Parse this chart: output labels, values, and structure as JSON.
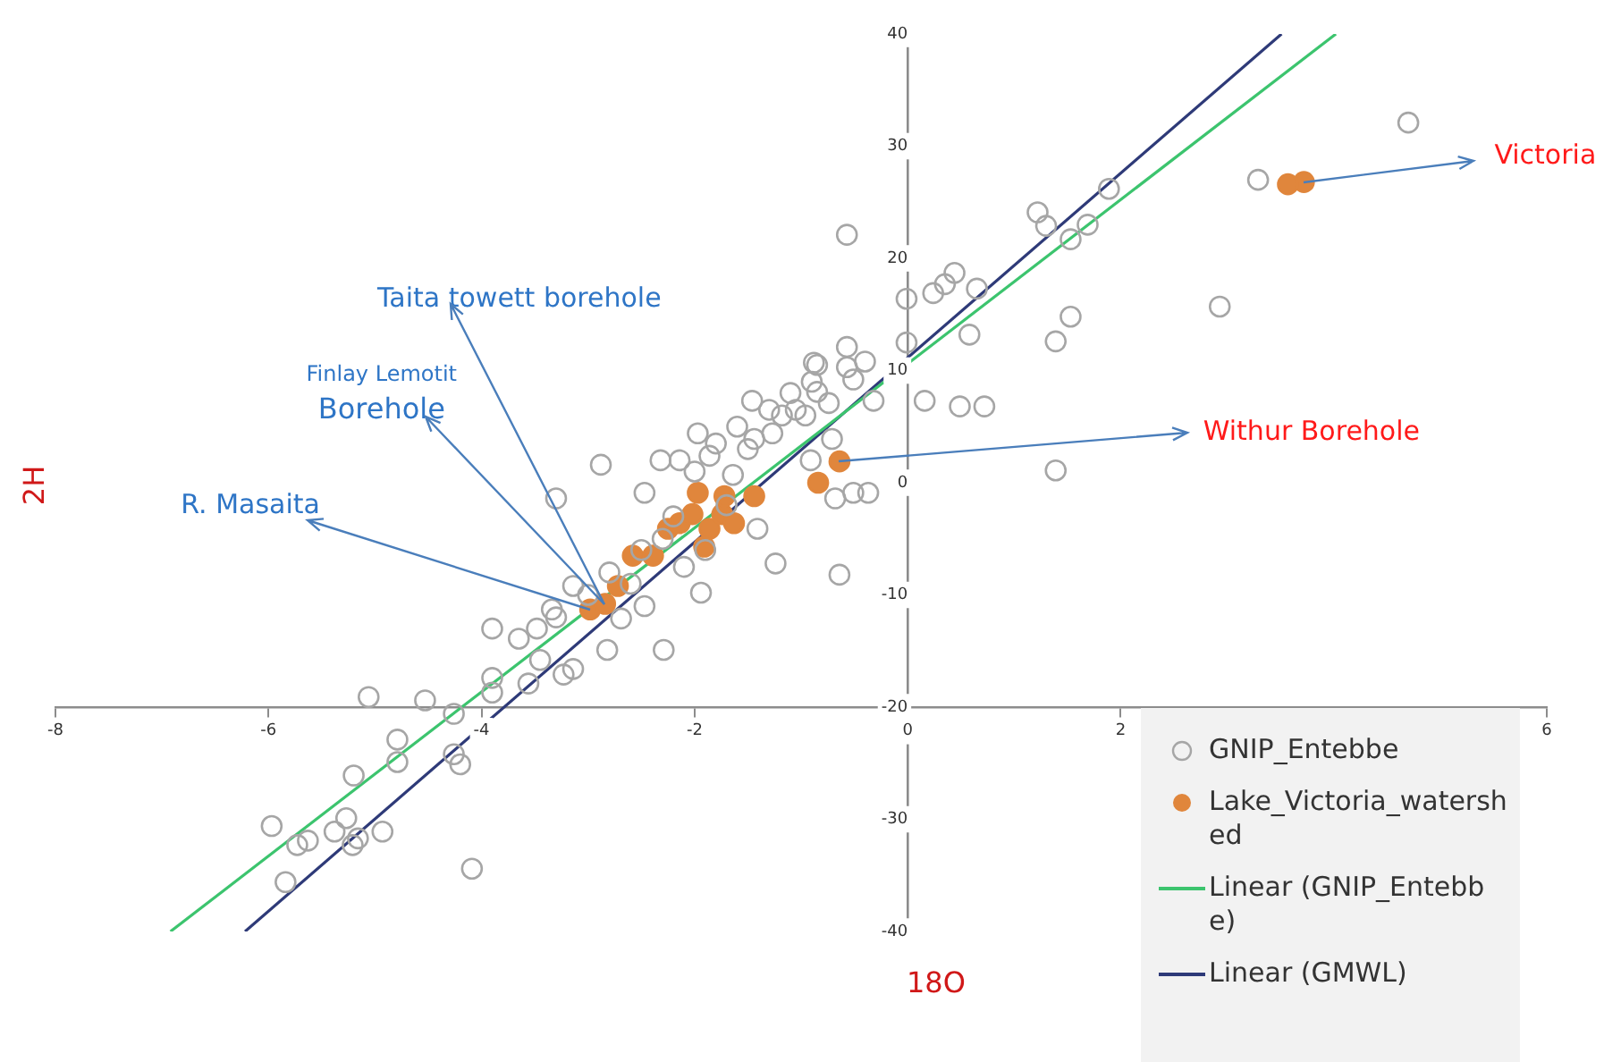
{
  "chart_data": {
    "type": "scatter",
    "xlabel": "18O",
    "ylabel": "2H",
    "xlim": [
      -8,
      6
    ],
    "xticks": [
      -8,
      -6,
      -4,
      -2,
      0,
      2,
      6
    ],
    "ylim": [
      -40,
      40
    ],
    "yticks": [
      -40,
      -30,
      -20,
      -10,
      0,
      10,
      20,
      30,
      40
    ],
    "grid": false,
    "legend": "bottom right",
    "marker": "circle",
    "series": [
      {
        "name": "GNIP_Entebbe",
        "color": "#a6a6a6",
        "x": [
          -5.97,
          -5.84,
          -5.73,
          -5.63,
          -5.38,
          -5.27,
          -5.21,
          -5.16,
          -4.93,
          -5.2,
          -5.06,
          -4.79,
          -4.79,
          -4.53,
          -4.26,
          -4.2,
          -4.26,
          -4.09,
          -3.9,
          -3.9,
          -3.9,
          -3.65,
          -3.56,
          -3.48,
          -3.45,
          -3.23,
          -3.14,
          -3.34,
          -3.14,
          -2.82,
          -2.69,
          -2.47,
          -2.29,
          -1.94,
          -1.24,
          -0.64,
          -3.3,
          -2.88,
          -2.47,
          -2.32,
          -2.14,
          -1.86,
          -1.97,
          -1.64,
          -1.46,
          -1.44,
          -1.27,
          -1.41,
          -0.91,
          -0.85,
          -0.68,
          -0.51,
          -0.37,
          -0.32,
          -0.85,
          -1.05,
          -1.18,
          -0.96,
          -0.74,
          -0.51,
          -0.57,
          -0.01,
          -0.01,
          0.16,
          0.24,
          0.35,
          0.44,
          0.58,
          0.65,
          0.49,
          0.72,
          1.22,
          1.3,
          1.53,
          1.69,
          1.89,
          1.39,
          1.53,
          1.39,
          2.93,
          3.29,
          4.7,
          -0.88,
          -0.57,
          -0.57,
          -0.4,
          -0.71,
          -1.6,
          -1.3,
          -1.1,
          -0.9,
          -1.5,
          -1.8,
          -2.0,
          -2.2,
          -2.5,
          -2.8,
          -3.0,
          -3.3,
          -2.6,
          -2.3,
          -1.7,
          -1.9,
          -2.1
        ],
        "values": [
          -30.6,
          -35.6,
          -32.3,
          -31.9,
          -31.1,
          -29.9,
          -32.3,
          -31.7,
          -31.1,
          -26.1,
          -19.1,
          -22.9,
          -24.9,
          -19.4,
          -20.6,
          -25.1,
          -24.2,
          -34.4,
          -13,
          -17.4,
          -18.7,
          -13.9,
          -17.9,
          -13,
          -15.8,
          -17.1,
          -16.6,
          -11.3,
          -9.2,
          -14.9,
          -12.1,
          -11,
          -14.9,
          -9.8,
          -7.2,
          -8.2,
          -1.4,
          1.6,
          -0.9,
          2,
          2,
          2.4,
          4.4,
          0.7,
          7.3,
          3.9,
          4.4,
          -4.1,
          2,
          10.5,
          -1.4,
          -0.9,
          -0.9,
          7.3,
          8.1,
          6.5,
          6,
          6,
          7.1,
          9.2,
          22.1,
          16.4,
          12.5,
          7.3,
          16.9,
          17.7,
          18.7,
          13.2,
          17.3,
          6.8,
          6.8,
          24.1,
          22.9,
          21.7,
          23,
          26.2,
          12.6,
          14.8,
          1.1,
          15.7,
          27,
          32.1,
          10.7,
          12.1,
          10.3,
          10.8,
          3.9,
          5,
          6.5,
          8,
          9,
          3,
          3.5,
          1,
          -3,
          -6,
          -8,
          -10,
          -12,
          -9,
          -5,
          -2,
          -6,
          -7.5
        ]
      },
      {
        "name": "Lake_Victoria_watershed",
        "color": "#e0863c",
        "x": [
          -2.98,
          -2.84,
          -2.72,
          -2.58,
          -2.39,
          -2.25,
          -2.14,
          -2.02,
          -1.97,
          -1.91,
          -1.86,
          -1.74,
          -1.72,
          -1.63,
          -1.44,
          -0.84,
          -0.64,
          3.72,
          3.57
        ],
        "values": [
          -11.3,
          -10.8,
          -9.2,
          -6.5,
          -6.5,
          -4.1,
          -3.6,
          -2.8,
          -0.9,
          -5.7,
          -4.1,
          -2.8,
          -1.2,
          -3.6,
          -1.2,
          0,
          1.9,
          26.8,
          26.6
        ]
      },
      {
        "name": "Linear (GNIP_Entebbe)",
        "type": "line",
        "marker": "none",
        "color": "#3cc46e",
        "x": [
          -6.92,
          4.02
        ],
        "values": [
          -40,
          40
        ]
      },
      {
        "name": "Linear (GMWL)",
        "type": "line",
        "marker": "none",
        "color": "#2e3a78",
        "x": [
          -6.22,
          3.51
        ],
        "values": [
          -40,
          40
        ]
      }
    ],
    "annotations": [
      {
        "text": "Taita towett borehole",
        "x": -2.84,
        "y": -10.8
      },
      {
        "text": "Finlay Lemotit Borehole",
        "x": -2.84,
        "y": -10.8
      },
      {
        "text": "R. Masaita",
        "x": -2.98,
        "y": -11.3
      },
      {
        "text": "Withur Borehole",
        "x": -0.64,
        "y": 1.9
      },
      {
        "text": "Victoria",
        "x": 3.72,
        "y": 26.8
      }
    ]
  }
}
